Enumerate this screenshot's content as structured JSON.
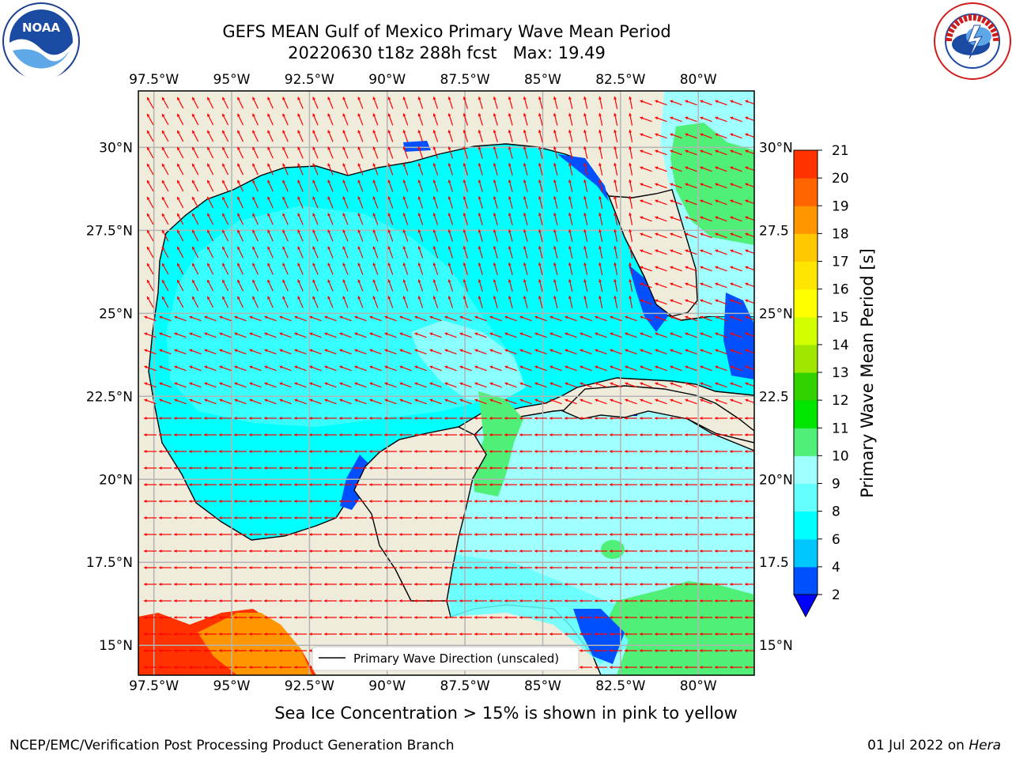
{
  "header": {
    "title_line1": "GEFS MEAN Gulf of Mexico Primary Wave Mean Period",
    "title_line2": "20220630 t18z 288h fcst   Max: 19.49"
  },
  "footer": {
    "sea_ice_note": "Sea Ice Concentration > 15% is shown in pink to yellow",
    "credit": "NCEP/EMC/Verification Post Processing Product Generation Branch",
    "date_prefix": "01 Jul 2022 on ",
    "machine": "Hera"
  },
  "legend": {
    "label": "Primary Wave Direction (unscaled)"
  },
  "colorbar": {
    "label": "Primary Wave Mean Period [s]",
    "levels": [
      2,
      4,
      6,
      8,
      9,
      10,
      11,
      12,
      13,
      14,
      15,
      16,
      17,
      18,
      19,
      20,
      21
    ],
    "colors": [
      "#0050ff",
      "#00c8ff",
      "#00ffff",
      "#64ffff",
      "#a0ffff",
      "#50f078",
      "#00e600",
      "#32d200",
      "#a0e600",
      "#d2ff00",
      "#ffff00",
      "#ffe600",
      "#ffc800",
      "#ff9600",
      "#ff6400",
      "#ff3200",
      "#ff0000"
    ],
    "under_color": "#0000ff"
  },
  "logos": {
    "noaa_text": "NOAA",
    "nws_text": "NATIONAL WEATHER SERVICE"
  },
  "chart_data": {
    "type": "heatmap",
    "title": "GEFS MEAN Gulf of Mexico Primary Wave Mean Period",
    "subtitle": "20220630 t18z 288h fcst   Max: 19.49",
    "xlim": [
      -98,
      -78.2
    ],
    "ylim": [
      14.1,
      31.7
    ],
    "x_ticks": [
      -97.5,
      -95,
      -92.5,
      -90,
      -87.5,
      -85,
      -82.5,
      -80
    ],
    "x_tick_labels": [
      "97.5°W",
      "95°W",
      "92.5°W",
      "90°W",
      "87.5°W",
      "85°W",
      "82.5°W",
      "80°W"
    ],
    "y_ticks": [
      15,
      17.5,
      20,
      22.5,
      25,
      27.5,
      30
    ],
    "y_tick_labels_left": [
      "15°N",
      "17.5°N",
      "20°N",
      "22.5°N",
      "25°N",
      "27.5°N",
      "30°N"
    ],
    "y_tick_labels_right": [
      "15°N",
      "17.5",
      "20°N",
      "22.5",
      "25°N",
      "27.5",
      "30°N"
    ],
    "grid": true,
    "legend_placement": "bottom-center",
    "max_value": 19.49,
    "units": "s",
    "colors": {
      "land": "#efecdc",
      "grid": "#b4b4b4",
      "arrow": "#ff0000"
    }
  }
}
